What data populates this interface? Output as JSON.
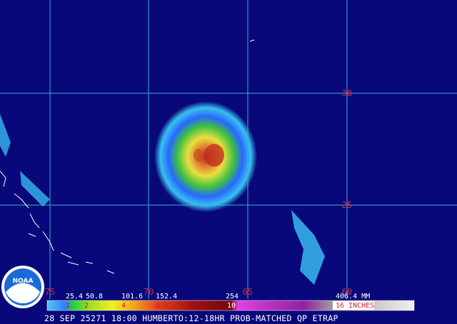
{
  "map": {
    "lat_labels": [
      "30",
      "25"
    ],
    "lon_labels": [
      "75",
      "70",
      "65",
      "60"
    ],
    "scale_mm": [
      "25.4",
      "50.8",
      "101.6",
      "152.4",
      "254",
      "406.4 MM"
    ],
    "scale_inches": [
      "1",
      "2",
      "4",
      "6",
      "10",
      "16 INCHES"
    ],
    "caption": "28 SEP 25271 18:00 HUMBERTO:12-18HR PROB-MATCHED QP ETRAP",
    "logo": "NOAA"
  }
}
